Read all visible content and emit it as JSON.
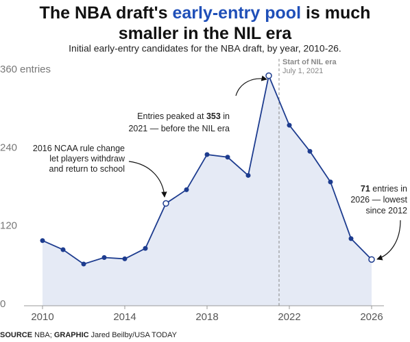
{
  "chart_data": {
    "type": "area-line",
    "title": [
      "The NBA draft's ",
      "early-entry pool",
      " is much smaller in the NIL era"
    ],
    "subtitle": "Initial early-entry candidates for the NBA draft, by year, 2010-26.",
    "ylabel": "entries",
    "x": [
      2010,
      2011,
      2012,
      2013,
      2014,
      2015,
      2016,
      2017,
      2018,
      2019,
      2020,
      2021,
      2022,
      2023,
      2024,
      2025,
      2026
    ],
    "values": [
      100,
      86,
      64,
      74,
      72,
      88,
      157,
      178,
      232,
      228,
      200,
      353,
      277,
      237,
      190,
      103,
      71
    ],
    "color": "#1d3c8f",
    "fill": "#e5eaf5",
    "title_highlight_color": "#1f4fb8",
    "xlim": [
      2009.1,
      2026.6
    ],
    "xticks": [
      2010,
      2014,
      2018,
      2022,
      2026
    ],
    "ylim": [
      0,
      360
    ],
    "yticks": [
      0,
      120,
      240,
      360
    ],
    "grid": false,
    "highlight_points": [
      6,
      11,
      16
    ],
    "nil_line": {
      "x": 2021.5,
      "label": "Start of NIL era",
      "sublabel": "July 1, 2021"
    },
    "annotations": [
      {
        "lines": [
          [
            {
              "text": "Entries peaked at "
            },
            {
              "text": "353",
              "bold": true
            },
            {
              "text": " in"
            }
          ],
          [
            {
              "text": "2021 — before the NIL era"
            }
          ]
        ]
      },
      {
        "lines": [
          [
            {
              "text": "2016 NCAA rule change"
            }
          ],
          [
            {
              "text": "let players withdraw"
            }
          ],
          [
            {
              "text": "and return to school"
            }
          ]
        ]
      },
      {
        "lines": [
          [
            {
              "text": "71",
              "bold": true
            },
            {
              "text": " entries in"
            }
          ],
          [
            {
              "text": "2026 — lowest"
            }
          ],
          [
            {
              "text": "since 2012"
            }
          ]
        ]
      }
    ],
    "source": [
      {
        "text": "SOURCE",
        "bold": true
      },
      {
        "text": " NBA; "
      },
      {
        "text": "GRAPHIC",
        "bold": true
      },
      {
        "text": " Jared Beilby/USA TODAY"
      }
    ]
  }
}
